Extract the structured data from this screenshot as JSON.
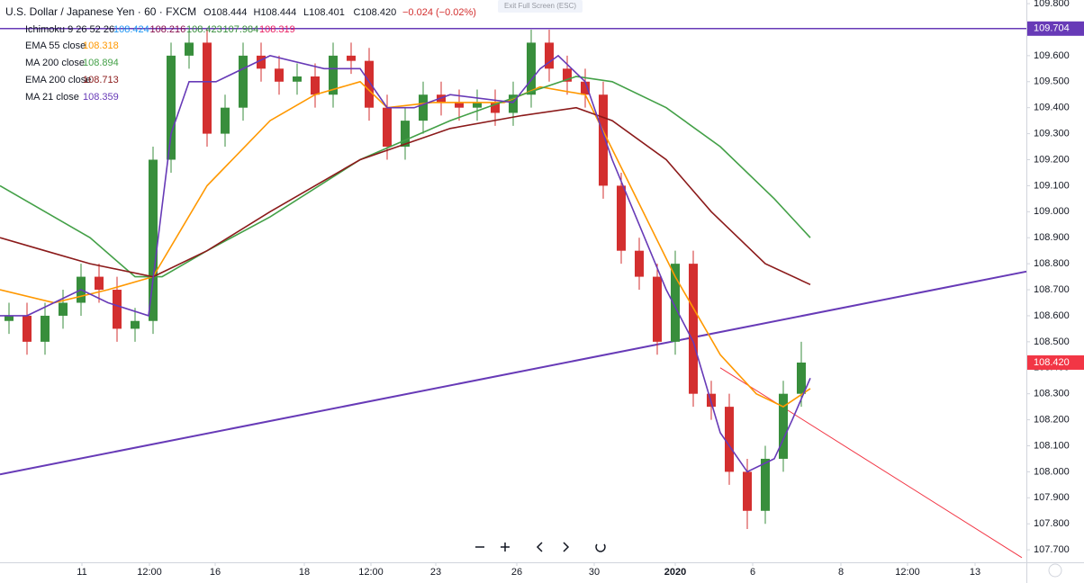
{
  "chart_data": {
    "type": "candlestick",
    "title": "U.S. Dollar / Japanese Yen · 60 · FXCM",
    "ohlc_text": [
      "O108.444",
      "H108.444",
      "L108.401",
      "C108.420"
    ],
    "change": "−0.024 (−0.02%)",
    "exit_button": "Exit Full Screen (ESC)",
    "ichimoku": {
      "name": "Ichimoku 9 26 52 26",
      "values": [
        108.424,
        108.216,
        108.423,
        107.984,
        108.319
      ],
      "colors": [
        "#2196f3",
        "#880e4f",
        "#388e3c",
        "#388e3c",
        "#e91e63"
      ]
    },
    "xlim": [
      0,
      114
    ],
    "ylim": [
      107.652,
      109.814
    ],
    "xticks": [
      {
        "value": 9.1,
        "label": "11"
      },
      {
        "value": 16.6,
        "label": "12:00"
      },
      {
        "value": 23.9,
        "label": "16"
      },
      {
        "value": 33.8,
        "label": "18"
      },
      {
        "value": 41.2,
        "label": "12:00"
      },
      {
        "value": 48.4,
        "label": "23"
      },
      {
        "value": 57.4,
        "label": "26"
      },
      {
        "value": 66,
        "label": "30"
      },
      {
        "value": 75,
        "label": "2020"
      },
      {
        "value": 83.6,
        "label": "6"
      },
      {
        "value": 93.4,
        "label": "8"
      },
      {
        "value": 100.8,
        "label": "12:00"
      },
      {
        "value": 108.3,
        "label": "13"
      }
    ],
    "yticks": [
      {
        "value": 107.7,
        "label": "107.700"
      },
      {
        "value": 107.8,
        "label": "107.800"
      },
      {
        "value": 107.9,
        "label": "107.900"
      },
      {
        "value": 108.0,
        "label": "108.000"
      },
      {
        "value": 108.1,
        "label": "108.100"
      },
      {
        "value": 108.2,
        "label": "108.200"
      },
      {
        "value": 108.3,
        "label": "108.300"
      },
      {
        "value": 108.4,
        "label": "108.400"
      },
      {
        "value": 108.5,
        "label": "108.500"
      },
      {
        "value": 108.6,
        "label": "108.600"
      },
      {
        "value": 108.7,
        "label": "108.700"
      },
      {
        "value": 108.8,
        "label": "108.800"
      },
      {
        "value": 108.9,
        "label": "108.900"
      },
      {
        "value": 109.0,
        "label": "109.000"
      },
      {
        "value": 109.1,
        "label": "109.100"
      },
      {
        "value": 109.2,
        "label": "109.200"
      },
      {
        "value": 109.3,
        "label": "109.300"
      },
      {
        "value": 109.4,
        "label": "109.400"
      },
      {
        "value": 109.5,
        "label": "109.500"
      },
      {
        "value": 109.6,
        "label": "109.600"
      },
      {
        "value": 109.7,
        "label": "109.700"
      },
      {
        "value": 109.8,
        "label": "109.800"
      }
    ],
    "up_color": "#388e3c",
    "down_color": "#d32f2f",
    "candles": {
      "x": [
        1,
        3,
        5,
        7,
        9,
        11,
        13,
        15,
        17,
        19,
        21,
        23,
        25,
        27,
        29,
        31,
        33,
        35,
        37,
        39,
        41,
        43,
        45,
        47,
        49,
        51,
        53,
        55,
        57,
        59,
        61,
        63,
        65,
        67,
        69,
        71,
        73,
        75,
        77,
        79,
        81,
        83,
        85,
        87,
        89
      ],
      "open": [
        108.58,
        108.6,
        108.5,
        108.6,
        108.65,
        108.75,
        108.7,
        108.55,
        108.58,
        109.2,
        109.6,
        109.65,
        109.3,
        109.4,
        109.6,
        109.55,
        109.5,
        109.52,
        109.45,
        109.6,
        109.58,
        109.4,
        109.25,
        109.35,
        109.45,
        109.42,
        109.4,
        109.42,
        109.38,
        109.45,
        109.65,
        109.55,
        109.5,
        109.45,
        109.1,
        108.85,
        108.75,
        108.5,
        108.8,
        108.3,
        108.25,
        108.0,
        107.85,
        108.05,
        108.3
      ],
      "high": [
        108.65,
        108.65,
        108.65,
        108.7,
        108.8,
        108.8,
        108.75,
        108.63,
        109.25,
        109.65,
        109.7,
        109.7,
        109.45,
        109.65,
        109.65,
        109.6,
        109.57,
        109.57,
        109.65,
        109.65,
        109.63,
        109.45,
        109.4,
        109.5,
        109.5,
        109.47,
        109.47,
        109.47,
        109.5,
        109.7,
        109.7,
        109.6,
        109.55,
        109.5,
        109.15,
        108.9,
        108.8,
        108.85,
        108.85,
        108.35,
        108.3,
        108.05,
        108.1,
        108.35,
        108.5
      ],
      "low": [
        108.53,
        108.45,
        108.45,
        108.55,
        108.6,
        108.65,
        108.5,
        108.5,
        108.53,
        109.15,
        109.55,
        109.25,
        109.25,
        109.35,
        109.5,
        109.45,
        109.45,
        109.4,
        109.4,
        109.53,
        109.35,
        109.2,
        109.2,
        109.3,
        109.37,
        109.35,
        109.35,
        109.33,
        109.33,
        109.4,
        109.5,
        109.45,
        109.4,
        109.05,
        108.8,
        108.7,
        108.45,
        108.45,
        108.25,
        108.2,
        107.95,
        107.78,
        107.8,
        108.0,
        108.25
      ],
      "close": [
        108.6,
        108.5,
        108.6,
        108.65,
        108.75,
        108.7,
        108.55,
        108.58,
        109.2,
        109.6,
        109.65,
        109.3,
        109.4,
        109.6,
        109.55,
        109.5,
        109.52,
        109.45,
        109.6,
        109.58,
        109.4,
        109.25,
        109.35,
        109.45,
        109.42,
        109.4,
        109.42,
        109.38,
        109.45,
        109.65,
        109.55,
        109.5,
        109.45,
        109.1,
        108.85,
        108.75,
        108.5,
        108.8,
        108.3,
        108.25,
        108.0,
        107.85,
        108.05,
        108.3,
        108.42
      ]
    },
    "series": [
      {
        "name": "EMA 55 close",
        "color": "#ff9800",
        "last": 108.318,
        "x": [
          0,
          6,
          12,
          17,
          23,
          30,
          35,
          40,
          43,
          48,
          56,
          60,
          65,
          70,
          75,
          80,
          84,
          87,
          90
        ],
        "values": [
          108.7,
          108.65,
          108.7,
          108.75,
          109.1,
          109.35,
          109.45,
          109.5,
          109.4,
          109.42,
          109.42,
          109.48,
          109.45,
          109.1,
          108.75,
          108.45,
          108.3,
          108.25,
          108.32
        ]
      },
      {
        "name": "MA 200 close",
        "color": "#43a047",
        "last": 108.894,
        "x": [
          0,
          5,
          10,
          15,
          18,
          23,
          30,
          40,
          50,
          58,
          64,
          68,
          74,
          80,
          86,
          90
        ],
        "values": [
          109.1,
          109.0,
          108.9,
          108.75,
          108.75,
          108.85,
          108.98,
          109.2,
          109.35,
          109.45,
          109.52,
          109.5,
          109.4,
          109.25,
          109.05,
          108.9
        ]
      },
      {
        "name": "EMA 200 close",
        "color": "#8b1a1a",
        "last": 108.713,
        "x": [
          0,
          5,
          10,
          17,
          23,
          30,
          40,
          50,
          58,
          64,
          68,
          74,
          79,
          85,
          90
        ],
        "values": [
          108.9,
          108.85,
          108.8,
          108.75,
          108.85,
          109.0,
          109.2,
          109.32,
          109.37,
          109.4,
          109.35,
          109.2,
          109.0,
          108.8,
          108.72
        ]
      },
      {
        "name": "MA 21 close",
        "color": "#673ab7",
        "last": 108.359,
        "x": [
          0,
          3,
          9,
          12,
          16.5,
          19,
          21,
          24,
          30,
          36,
          40,
          43,
          46,
          50,
          57,
          60,
          62,
          65,
          68,
          71,
          74,
          77,
          80,
          83,
          86,
          88,
          90
        ],
        "values": [
          108.6,
          108.6,
          108.7,
          108.65,
          108.6,
          109.3,
          109.5,
          109.5,
          109.6,
          109.55,
          109.55,
          109.4,
          109.4,
          109.45,
          109.42,
          109.55,
          109.6,
          109.5,
          109.2,
          108.95,
          108.7,
          108.5,
          108.15,
          108.0,
          108.05,
          108.2,
          108.36
        ]
      }
    ],
    "price_line": {
      "value": 109.704,
      "color": "#673ab7"
    },
    "last_price": {
      "value": 108.42,
      "label": "108.420",
      "color": "#f23645"
    },
    "trendlines": [
      {
        "color": "#673ab7",
        "points": [
          [
            0,
            107.99
          ],
          [
            114,
            108.77
          ]
        ]
      },
      {
        "color": "#f23645",
        "points": [
          [
            80,
            108.4
          ],
          [
            113.5,
            107.67
          ]
        ]
      }
    ]
  }
}
